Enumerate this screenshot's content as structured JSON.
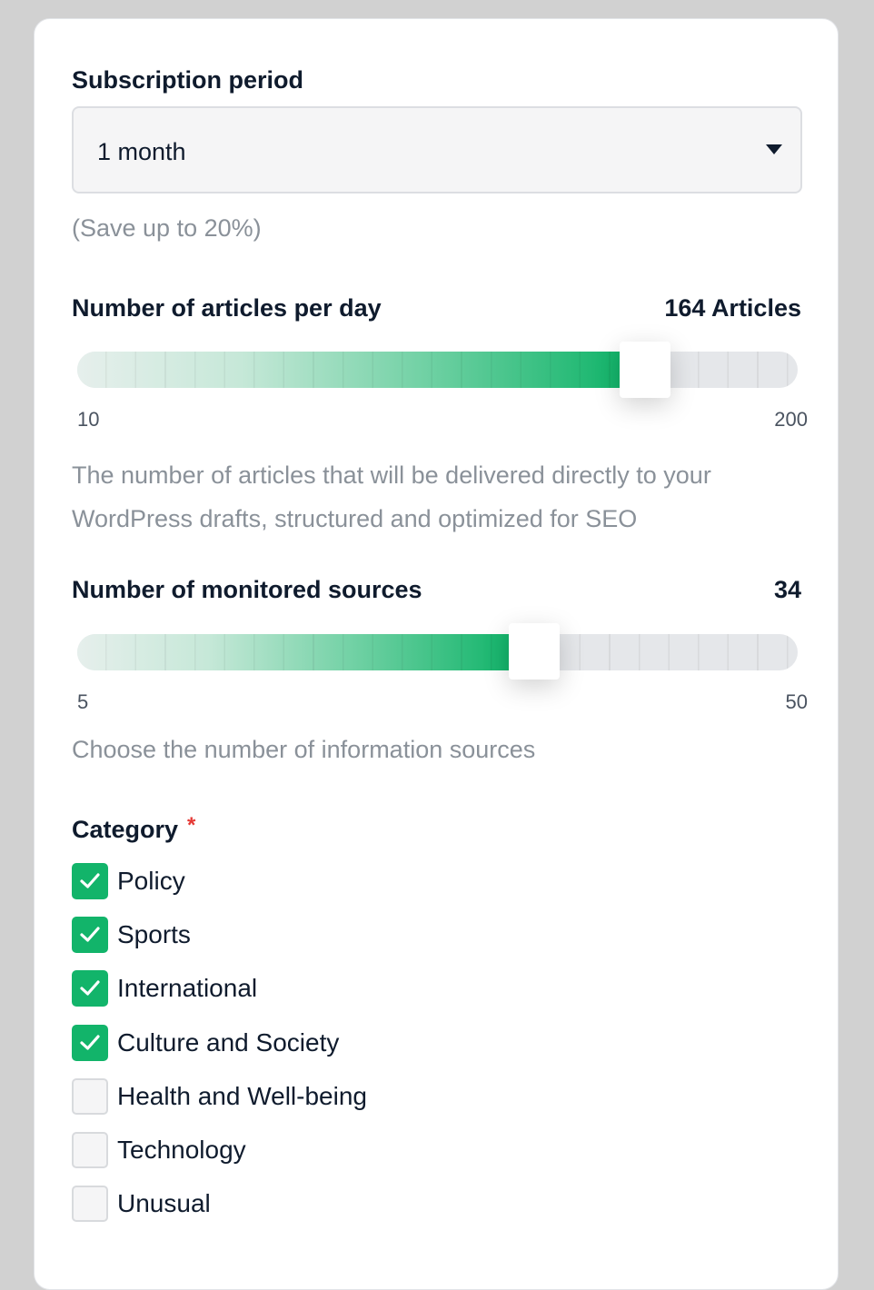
{
  "subscription": {
    "label": "Subscription period",
    "selected": "1 month",
    "note": "(Save up to 20%)"
  },
  "articles": {
    "label": "Number of articles per day",
    "value_display": "164 Articles",
    "value": 164,
    "min": 10,
    "max": 200,
    "min_label": "10",
    "max_label": "200",
    "description_line1": "The number of articles that will be delivered directly to your",
    "description_line2": "WordPress drafts, structured and optimized for SEO"
  },
  "sources": {
    "label": "Number of monitored sources",
    "value_display": "34",
    "value": 34,
    "min": 5,
    "max": 50,
    "min_label": "5",
    "max_label": "50",
    "description": "Choose the number of information sources"
  },
  "category": {
    "label": "Category",
    "required_mark": "*",
    "items": [
      {
        "label": "Policy",
        "checked": true
      },
      {
        "label": "Sports",
        "checked": true
      },
      {
        "label": "International",
        "checked": true
      },
      {
        "label": "Culture and Society",
        "checked": true
      },
      {
        "label": "Health and Well-being",
        "checked": false
      },
      {
        "label": "Technology",
        "checked": false
      },
      {
        "label": "Unusual",
        "checked": false
      }
    ]
  },
  "colors": {
    "accent": "#12b46a",
    "text": "#0f1b2d",
    "muted": "#8a9199",
    "required": "#e53935"
  }
}
